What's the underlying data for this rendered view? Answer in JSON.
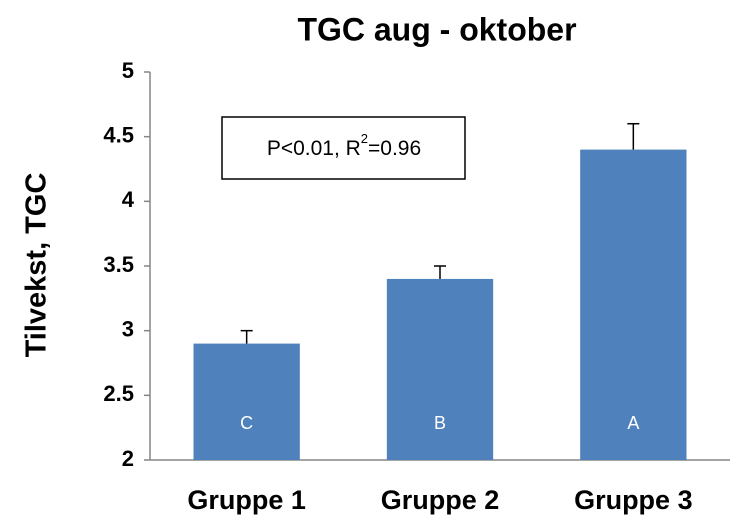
{
  "chart_data": {
    "type": "bar",
    "title": "TGC aug - oktober",
    "y_label": "Tilvekst, TGC",
    "categories": [
      "Gruppe 1",
      "Gruppe 2",
      "Gruppe 3"
    ],
    "values": [
      2.9,
      3.4,
      4.4
    ],
    "errors": [
      0.1,
      0.1,
      0.2
    ],
    "bar_labels": [
      "C",
      "B",
      "A"
    ],
    "color": "#4f81bd",
    "ylim": [
      2,
      5
    ],
    "yticks": [
      2,
      2.5,
      3,
      3.5,
      4,
      4.5,
      5
    ],
    "grid": false,
    "annotation": {
      "before": "P<0.01, R",
      "sup": "2",
      "after": "=0.96"
    }
  }
}
